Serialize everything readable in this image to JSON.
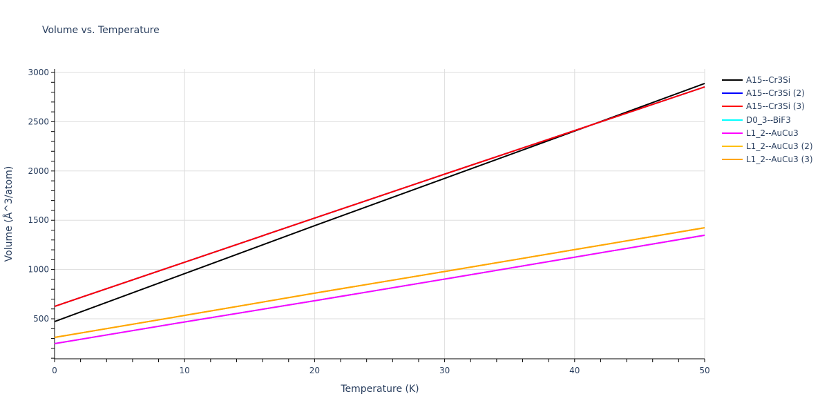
{
  "chart_data": {
    "type": "line",
    "title": "Volume vs. Temperature",
    "xlabel": "Temperature (K)",
    "ylabel": "Volume (Å^3/atom)",
    "xlim": [
      0,
      50
    ],
    "ylim": [
      94,
      3035
    ],
    "xticks": [
      0,
      10,
      20,
      30,
      40,
      50
    ],
    "yticks": [
      500,
      1000,
      1500,
      2000,
      2500,
      3000
    ],
    "grid": true,
    "legend_position": "right",
    "x": [
      0,
      10,
      20,
      30,
      40,
      50
    ],
    "series": [
      {
        "name": "A15--Cr3Si",
        "color": "#000000",
        "values": [
          472,
          958,
          1445,
          1925,
          2405,
          2888
        ]
      },
      {
        "name": "A15--Cr3Si (2)",
        "color": "#0000ff",
        "values": [
          626,
          1074,
          1522,
          1968,
          2410,
          2853
        ]
      },
      {
        "name": "A15--Cr3Si (3)",
        "color": "#ff0000",
        "values": [
          626,
          1074,
          1522,
          1968,
          2410,
          2853
        ]
      },
      {
        "name": "D0_3--BiF3",
        "color": "#00ffff",
        "values": [
          248,
          468,
          683,
          903,
          1125,
          1348
        ]
      },
      {
        "name": "L1_2--AuCu3",
        "color": "#ff00ff",
        "values": [
          248,
          468,
          683,
          903,
          1125,
          1348
        ]
      },
      {
        "name": "L1_2--AuCu3 (2)",
        "color": "#ffbf00",
        "values": [
          311,
          534,
          760,
          980,
          1202,
          1424
        ]
      },
      {
        "name": "L1_2--AuCu3 (3)",
        "color": "#ffa500",
        "values": [
          311,
          534,
          760,
          980,
          1202,
          1424
        ]
      }
    ]
  },
  "plot": {
    "title": "Volume vs. Temperature",
    "xlabel": "Temperature (K)",
    "ylabel": "Volume (Å^3/atom)"
  },
  "legend": {
    "items": [
      {
        "label": "A15--Cr3Si",
        "color": "#000000"
      },
      {
        "label": "A15--Cr3Si (2)",
        "color": "#0000ff"
      },
      {
        "label": "A15--Cr3Si (3)",
        "color": "#ff0000"
      },
      {
        "label": "D0_3--BiF3",
        "color": "#00ffff"
      },
      {
        "label": "L1_2--AuCu3",
        "color": "#ff00ff"
      },
      {
        "label": "L1_2--AuCu3 (2)",
        "color": "#ffbf00"
      },
      {
        "label": "L1_2--AuCu3 (3)",
        "color": "#ffa500"
      }
    ]
  }
}
